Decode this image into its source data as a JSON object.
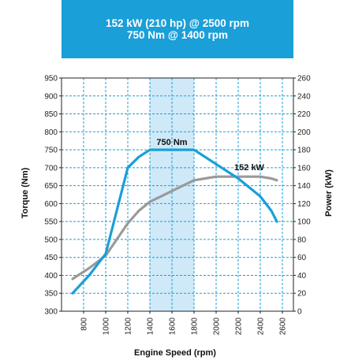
{
  "header": {
    "line1": "152 kW (210 hp) @ 2500 rpm",
    "line2": "750 Nm @ 1400 rpm"
  },
  "colors": {
    "banner": "#1a9fd8",
    "torque": "#1a9fd8",
    "power": "#9a9a9a",
    "highlight": "#cfe9f8",
    "grid": "#1a9fd8"
  },
  "chart_data": {
    "type": "line",
    "xlabel": "Engine Speed (rpm)",
    "ylabel_left": "Torque (Nm)",
    "ylabel_right": "Power (kW)",
    "xlim": [
      600,
      2700
    ],
    "ylim_left": [
      300,
      950
    ],
    "ylim_right": [
      0,
      260
    ],
    "x_ticks": [
      "800",
      "1000",
      "1200",
      "1400",
      "1600",
      "1800",
      "2000",
      "2200",
      "2400",
      "2600"
    ],
    "y_left_ticks": [
      "300",
      "350",
      "400",
      "450",
      "500",
      "550",
      "600",
      "650",
      "700",
      "750",
      "800",
      "850",
      "900",
      "950"
    ],
    "y_right_ticks": [
      "0",
      "20",
      "40",
      "60",
      "80",
      "100",
      "120",
      "140",
      "160",
      "180",
      "200",
      "220",
      "240",
      "260"
    ],
    "highlight_range": [
      1400,
      1800
    ],
    "grid": true,
    "series": [
      {
        "axis": "left",
        "x": [
          700,
          850,
          1000,
          1100,
          1200,
          1300,
          1400,
          1600,
          1800,
          2000,
          2200,
          2400,
          2500,
          2550
        ],
        "values": [
          350,
          400,
          460,
          580,
          700,
          730,
          750,
          750,
          750,
          710,
          670,
          620,
          580,
          550
        ]
      },
      {
        "axis": "right",
        "x": [
          700,
          850,
          1000,
          1100,
          1200,
          1300,
          1400,
          1500,
          1600,
          1700,
          1800,
          1900,
          2000,
          2100,
          2200,
          2300,
          2400,
          2500,
          2550
        ],
        "values": [
          36,
          48,
          62,
          80,
          98,
          112,
          122,
          128,
          134,
          140,
          146,
          148,
          150,
          150,
          150,
          150,
          150,
          148,
          146
        ]
      }
    ],
    "annotations": [
      {
        "text": "750 Nm",
        "x": 1600,
        "y": 750,
        "axis": "left"
      },
      {
        "text": "152 kW",
        "x": 2300,
        "y": 152,
        "axis": "right"
      }
    ]
  }
}
